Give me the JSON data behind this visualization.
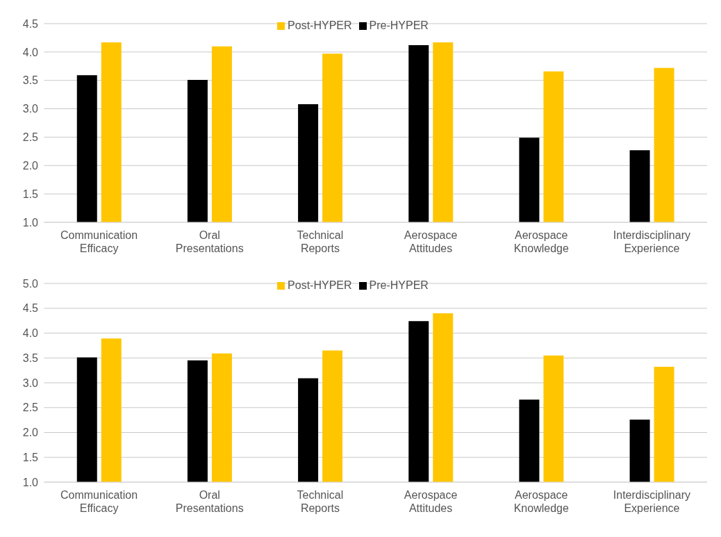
{
  "chart_data": [
    {
      "type": "bar",
      "categories": [
        "Communication Efficacy",
        "Oral Presentations",
        "Technical Reports",
        "Aerospace Attitudes",
        "Aerospace Knowledge",
        "Interdisciplinary Experience"
      ],
      "series": [
        {
          "name": "Pre-HYPER",
          "color": "#000000",
          "values": [
            3.59,
            3.51,
            3.08,
            4.12,
            2.49,
            2.27
          ]
        },
        {
          "name": "Post-HYPER",
          "color": "#ffc600",
          "values": [
            4.17,
            4.1,
            3.97,
            4.17,
            3.66,
            3.72
          ]
        }
      ],
      "ylim": [
        1.0,
        4.5
      ],
      "yticks": [
        {
          "value": 1,
          "label": "1.0"
        },
        {
          "value": 1.5,
          "label": "1.5"
        },
        {
          "value": 2,
          "label": "2.0"
        },
        {
          "value": 2.5,
          "label": "2.5"
        },
        {
          "value": 3,
          "label": "3.0"
        },
        {
          "value": 3.5,
          "label": "3.5"
        },
        {
          "value": 4,
          "label": "4.0"
        },
        {
          "value": 4.5,
          "label": "4.5"
        }
      ],
      "grid": "y",
      "legend": "top"
    },
    {
      "type": "bar",
      "categories": [
        "Communication Efficacy",
        "Oral Presentations",
        "Technical Reports",
        "Aerospace Attitudes",
        "Aerospace Knowledge",
        "Interdisciplinary Experience"
      ],
      "series": [
        {
          "name": "Pre-HYPER",
          "color": "#000000",
          "values": [
            3.51,
            3.45,
            3.09,
            4.24,
            2.66,
            2.26
          ]
        },
        {
          "name": "Post-HYPER",
          "color": "#ffc600",
          "values": [
            3.89,
            3.59,
            3.65,
            4.4,
            3.55,
            3.32
          ]
        }
      ],
      "ylim": [
        1.0,
        5.0
      ],
      "yticks": [
        {
          "value": 1,
          "label": "1.0"
        },
        {
          "value": 1.5,
          "label": "1.5"
        },
        {
          "value": 2,
          "label": "2.0"
        },
        {
          "value": 2.5,
          "label": "2.5"
        },
        {
          "value": 3,
          "label": "3.0"
        },
        {
          "value": 3.5,
          "label": "3.5"
        },
        {
          "value": 4,
          "label": "4.0"
        },
        {
          "value": 4.5,
          "label": "4.5"
        },
        {
          "value": 5,
          "label": "5.0"
        }
      ],
      "grid": "y",
      "legend": "top"
    }
  ]
}
